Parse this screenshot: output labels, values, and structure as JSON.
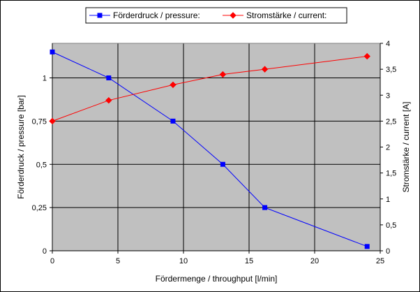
{
  "chart_data": {
    "type": "line",
    "xlabel": "Fördermenge / throughput [l/min]",
    "ylabel": "Förderdruck / pressure [bar]",
    "y2label": "Stromstärke / current [A]",
    "xlim": [
      0,
      25
    ],
    "ylim": [
      0,
      1.2
    ],
    "y2lim": [
      0,
      4
    ],
    "x_ticks": [
      0,
      5,
      10,
      15,
      20,
      25
    ],
    "x_tick_labels": [
      "0",
      "5",
      "10",
      "15",
      "20",
      "25"
    ],
    "y_ticks": [
      0,
      0.25,
      0.5,
      0.75,
      1
    ],
    "y_tick_labels": [
      "0",
      "0,25",
      "0,5",
      "0,75",
      "1"
    ],
    "y2_ticks": [
      0,
      0.5,
      1,
      1.5,
      2,
      2.5,
      3,
      3.5,
      4
    ],
    "y2_tick_labels": [
      "0",
      "0,5",
      "1",
      "1,5",
      "2",
      "2,5",
      "3",
      "3,5",
      "4"
    ],
    "grid": true,
    "plot_background": "#c0c0c0",
    "legend_position": "top",
    "series": [
      {
        "name": "Förderdruck / pressure:",
        "axis": "left",
        "color": "#0000ff",
        "marker": "square",
        "x": [
          0,
          4.3,
          9.2,
          13,
          16.2,
          24
        ],
        "y": [
          1.15,
          1.0,
          0.75,
          0.5,
          0.25,
          0.025
        ]
      },
      {
        "name": "Stromstärke / current:",
        "axis": "right",
        "color": "#ff0000",
        "marker": "diamond",
        "x": [
          0,
          4.3,
          9.2,
          13,
          16.2,
          24
        ],
        "y": [
          2.5,
          2.9,
          3.2,
          3.4,
          3.5,
          3.75
        ]
      }
    ]
  }
}
